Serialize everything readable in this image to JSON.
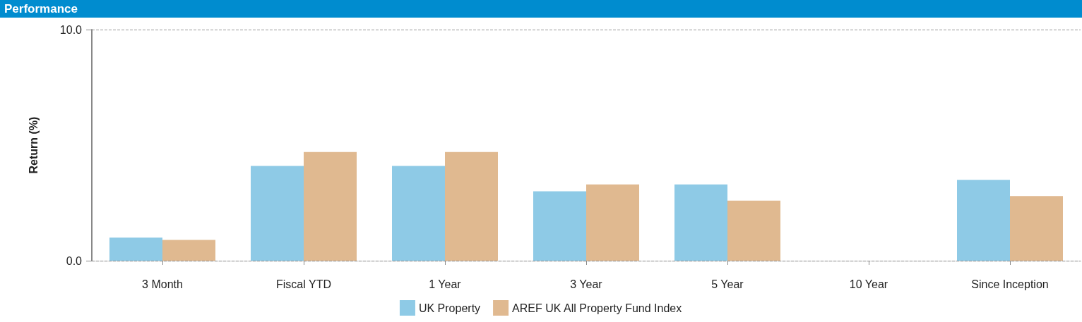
{
  "chart_data": {
    "type": "bar",
    "title": "Performance",
    "ylabel": "Return (%)",
    "categories": [
      "3 Month",
      "Fiscal YTD",
      "1 Year",
      "3 Year",
      "5 Year",
      "10 Year",
      "Since Inception"
    ],
    "series": [
      {
        "name": "UK Property",
        "color": "#8ecae6",
        "values": [
          1.0,
          4.1,
          4.1,
          3.0,
          3.3,
          null,
          3.5
        ]
      },
      {
        "name": "AREF UK All Property Fund Index",
        "color": "#e0b990",
        "values": [
          0.9,
          4.7,
          4.7,
          3.3,
          2.6,
          null,
          2.8
        ]
      }
    ],
    "ylim": [
      0,
      10
    ],
    "yticks": [
      {
        "value": 0,
        "label": "0.0"
      },
      {
        "value": 10,
        "label": "10.0"
      }
    ],
    "grid": "y",
    "legend": "bottom"
  }
}
